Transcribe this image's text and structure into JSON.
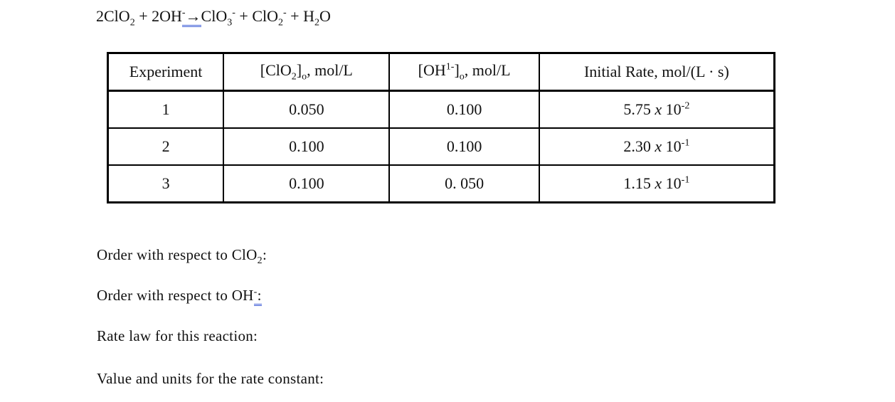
{
  "equation": [
    "2ClO",
    "2",
    " + 2OH",
    "-",
    "→",
    "ClO",
    "3",
    "-",
    " + ClO",
    "2",
    "-",
    " + H",
    "2",
    "O"
  ],
  "table": {
    "header": [
      [
        "Experiment"
      ],
      [
        "[ClO",
        "2",
        "]",
        "o",
        ", mol/L"
      ],
      [
        "[OH",
        "1-",
        "]",
        "o",
        ", mol/L"
      ],
      [
        "Initial Rate, mol/(L · s)"
      ]
    ],
    "rows": [
      [
        [
          "1"
        ],
        [
          "0.050"
        ],
        [
          "0.100"
        ],
        [
          "5.75",
          "x",
          "10",
          "-2"
        ]
      ],
      [
        [
          "2"
        ],
        [
          "0.100"
        ],
        [
          "0.100"
        ],
        [
          "2.30",
          "x",
          "10",
          "-1"
        ]
      ],
      [
        [
          "3"
        ],
        [
          "0.100"
        ],
        [
          "0. 050"
        ],
        [
          "1.15",
          "x",
          "10",
          "-1"
        ]
      ]
    ]
  },
  "questions": [
    [
      "Order with respect to ClO",
      "2",
      ":"
    ],
    [
      "Order with respect to OH",
      "-",
      ":"
    ],
    [
      "Rate law for this reaction:"
    ],
    [
      "Value and units for the rate constant:"
    ]
  ]
}
